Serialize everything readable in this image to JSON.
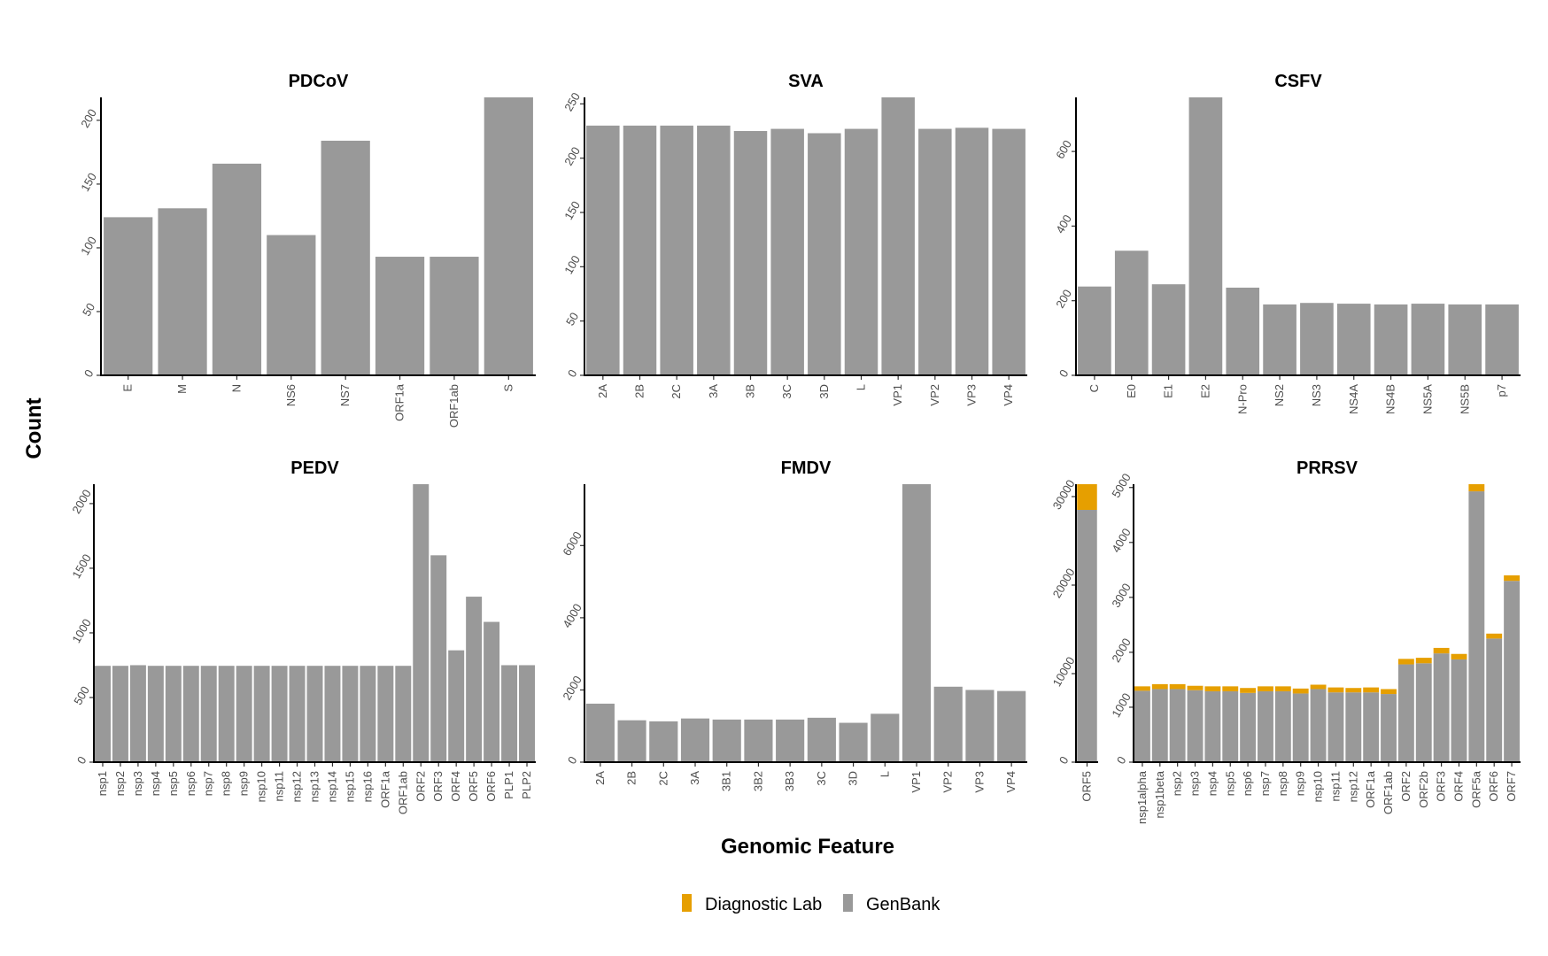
{
  "chart_data": {
    "type": "bar",
    "xlabel": "Genomic Feature",
    "ylabel": "Count",
    "legend": {
      "placement": "bottom",
      "entries": [
        {
          "name": "Diagnostic Lab",
          "color": "#E69F00"
        },
        {
          "name": "GenBank",
          "color": "#999999"
        }
      ]
    },
    "panels": [
      {
        "title": "PDCoV",
        "categories": [
          "E",
          "M",
          "N",
          "NS6",
          "NS7",
          "ORF1a",
          "ORF1ab",
          "S"
        ],
        "series": [
          {
            "name": "GenBank",
            "values": [
              124,
              131,
              166,
              110,
              184,
              93,
              93,
              218
            ]
          },
          {
            "name": "Diagnostic Lab",
            "values": [
              0,
              0,
              0,
              0,
              0,
              0,
              0,
              0
            ]
          }
        ],
        "ylim": [
          0,
          218
        ],
        "yticks": [
          0,
          50,
          100,
          150,
          200
        ]
      },
      {
        "title": "SVA",
        "categories": [
          "2A",
          "2B",
          "2C",
          "3A",
          "3B",
          "3C",
          "3D",
          "L",
          "VP1",
          "VP2",
          "VP3",
          "VP4"
        ],
        "series": [
          {
            "name": "GenBank",
            "values": [
              230,
              230,
              230,
              230,
              225,
              227,
              223,
              227,
              256,
              227,
              228,
              227
            ]
          },
          {
            "name": "Diagnostic Lab",
            "values": [
              0,
              0,
              0,
              0,
              0,
              0,
              0,
              0,
              0,
              0,
              0,
              0
            ]
          }
        ],
        "ylim": [
          0,
          256
        ],
        "yticks": [
          0,
          50,
          100,
          150,
          200,
          250
        ]
      },
      {
        "title": "CSFV",
        "categories": [
          "C",
          "E0",
          "E1",
          "E2",
          "N-Pro",
          "NS2",
          "NS3",
          "NS4A",
          "NS4B",
          "NS5A",
          "NS5B",
          "p7"
        ],
        "series": [
          {
            "name": "GenBank",
            "values": [
              238,
              334,
              244,
              745,
              235,
              190,
              194,
              192,
              190,
              192,
              190,
              190
            ]
          },
          {
            "name": "Diagnostic Lab",
            "values": [
              0,
              0,
              0,
              0,
              0,
              0,
              0,
              0,
              0,
              0,
              0,
              0
            ]
          }
        ],
        "ylim": [
          0,
          745
        ],
        "yticks": [
          0,
          200,
          400,
          600
        ]
      },
      {
        "title": "PEDV",
        "categories": [
          "nsp1",
          "nsp2",
          "nsp3",
          "nsp4",
          "nsp5",
          "nsp6",
          "nsp7",
          "nsp8",
          "nsp9",
          "nsp10",
          "nsp11",
          "nsp12",
          "nsp13",
          "nsp14",
          "nsp15",
          "nsp16",
          "ORF1a",
          "ORF1ab",
          "ORF2",
          "ORF3",
          "ORF4",
          "ORF5",
          "ORF6",
          "PLP1",
          "PLP2"
        ],
        "series": [
          {
            "name": "GenBank",
            "values": [
              745,
              745,
              750,
              745,
              745,
              745,
              745,
              745,
              745,
              745,
              745,
              745,
              745,
              745,
              745,
              745,
              745,
              745,
              2150,
              1600,
              865,
              1280,
              1085,
              750,
              750
            ]
          },
          {
            "name": "Diagnostic Lab",
            "values": [
              0,
              0,
              0,
              0,
              0,
              0,
              0,
              0,
              0,
              0,
              0,
              0,
              0,
              0,
              0,
              0,
              0,
              0,
              0,
              0,
              0,
              0,
              0,
              0,
              0
            ]
          }
        ],
        "ylim": [
          0,
          2150
        ],
        "yticks": [
          0,
          500,
          1000,
          1500,
          2000
        ]
      },
      {
        "title": "FMDV",
        "categories": [
          "2A",
          "2B",
          "2C",
          "3A",
          "3B1",
          "3B2",
          "3B3",
          "3C",
          "3D",
          "L",
          "VP1",
          "VP2",
          "VP3",
          "VP4"
        ],
        "series": [
          {
            "name": "GenBank",
            "values": [
              1620,
              1160,
              1130,
              1210,
              1180,
              1180,
              1180,
              1230,
              1090,
              1340,
              7700,
              2090,
              2000,
              1970
            ]
          },
          {
            "name": "Diagnostic Lab",
            "values": [
              0,
              0,
              0,
              0,
              0,
              0,
              0,
              0,
              0,
              0,
              0,
              0,
              0,
              0
            ]
          }
        ],
        "ylim": [
          0,
          7700
        ],
        "yticks": [
          0,
          2000,
          4000,
          6000
        ]
      },
      {
        "title": "",
        "categories": [
          "ORF5"
        ],
        "series": [
          {
            "name": "GenBank",
            "values": [
              28500
            ]
          },
          {
            "name": "Diagnostic Lab",
            "values": [
              2900
            ]
          }
        ],
        "ylim": [
          0,
          31400
        ],
        "yticks": [
          0,
          10000,
          20000,
          30000
        ]
      },
      {
        "title": "PRRSV",
        "categories": [
          "nsp1alpha",
          "nsp1beta",
          "nsp2",
          "nsp3",
          "nsp4",
          "nsp5",
          "nsp6",
          "nsp7",
          "nsp8",
          "nsp9",
          "nsp10",
          "nsp11",
          "nsp12",
          "ORF1a",
          "ORF1ab",
          "ORF2",
          "ORF2b",
          "ORF3",
          "ORF4",
          "ORF5a",
          "ORF6",
          "ORF7"
        ],
        "series": [
          {
            "name": "GenBank",
            "values": [
              1300,
              1330,
              1330,
              1310,
              1290,
              1290,
              1260,
              1290,
              1290,
              1250,
              1330,
              1270,
              1270,
              1270,
              1240,
              1780,
              1800,
              1980,
              1870,
              4930,
              2250,
              3300
            ]
          },
          {
            "name": "Diagnostic Lab",
            "values": [
              80,
              90,
              90,
              80,
              90,
              90,
              90,
              90,
              90,
              90,
              80,
              90,
              80,
              90,
              90,
              100,
              100,
              100,
              100,
              130,
              90,
              100
            ]
          }
        ],
        "ylim": [
          0,
          5060
        ],
        "yticks": [
          0,
          1000,
          2000,
          3000,
          4000,
          5000
        ]
      }
    ]
  }
}
